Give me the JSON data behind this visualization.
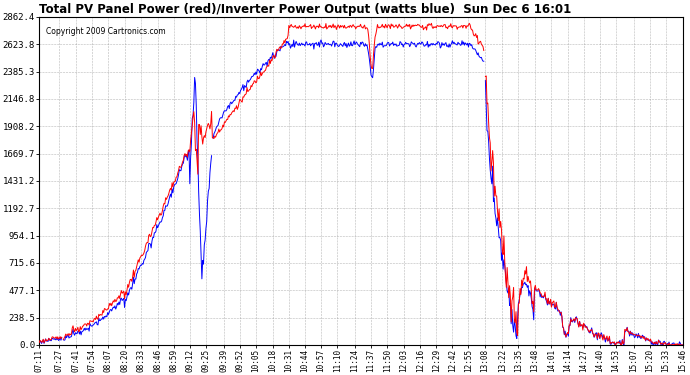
{
  "title": "Total PV Panel Power (red)/Inverter Power Output (watts blue)  Sun Dec 6 16:01",
  "copyright": "Copyright 2009 Cartronics.com",
  "background_color": "#ffffff",
  "plot_bg_color": "#ffffff",
  "grid_color": "#888888",
  "line_color_red": "#ff0000",
  "line_color_blue": "#0000ff",
  "y_ticks": [
    0.0,
    238.5,
    477.1,
    715.6,
    954.1,
    1192.7,
    1431.2,
    1669.7,
    1908.2,
    2146.8,
    2385.3,
    2623.8,
    2862.4
  ],
  "x_labels": [
    "07:11",
    "07:27",
    "07:41",
    "07:54",
    "08:07",
    "08:20",
    "08:33",
    "08:46",
    "08:59",
    "09:12",
    "09:25",
    "09:39",
    "09:52",
    "10:05",
    "10:18",
    "10:31",
    "10:44",
    "10:57",
    "11:10",
    "11:24",
    "11:37",
    "11:50",
    "12:03",
    "12:16",
    "12:29",
    "12:42",
    "12:55",
    "13:08",
    "13:22",
    "13:35",
    "13:48",
    "14:01",
    "14:14",
    "14:27",
    "14:40",
    "14:53",
    "15:07",
    "15:20",
    "15:33",
    "15:46"
  ],
  "ylim": [
    0,
    2862.4
  ],
  "num_points": 800
}
